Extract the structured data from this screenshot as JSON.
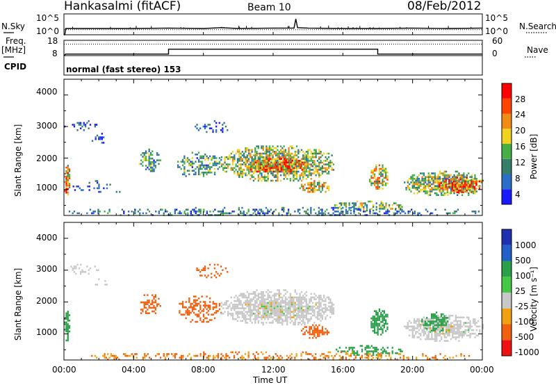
{
  "header": {
    "radar": "Hankasalmi (fitACF)",
    "beam": "Beam 10",
    "date": "08/Feb/2012",
    "cpid_text": "normal (fast stereo) 153"
  },
  "left_labels": {
    "nsky": "N.Sky",
    "freq": "Freq.",
    "freq_unit": "[MHz]",
    "cpid": "CPID"
  },
  "right_labels": {
    "nsearch": "N.Search",
    "nave": "Nave"
  },
  "colors": {
    "power": [
      "#1a1aff",
      "#2a6ec8",
      "#357f6b",
      "#46b046",
      "#f0d31e",
      "#f08c14",
      "#ff4400",
      "#ff0000"
    ],
    "velocity": [
      "#ee1111",
      "#f06010",
      "#f0a010",
      "#c8c8c8",
      "#46c846",
      "#2aa04a",
      "#2060c8",
      "#2030b0"
    ]
  },
  "chart_data": [
    {
      "type": "line",
      "name": "noise",
      "left_ticks": [
        "10^5",
        "10^0"
      ],
      "right_ticks": [
        "10^5",
        "10^0"
      ],
      "ylim_log10": [
        0,
        5
      ],
      "series": [
        {
          "name": "N.Sky",
          "style": "solid",
          "x_hours": [
            0,
            0.05,
            0.1,
            2,
            4,
            6,
            8,
            9,
            10,
            12,
            13.2,
            13.3,
            13.4,
            14,
            16,
            18,
            20,
            22,
            24
          ],
          "log10_values": [
            0,
            0,
            1.5,
            1.5,
            1.5,
            1.6,
            1.5,
            1.7,
            1.5,
            1.6,
            1.6,
            3.8,
            1.7,
            1.6,
            1.5,
            1.5,
            1.6,
            1.5,
            1.6
          ]
        },
        {
          "name": "N.Search",
          "style": "dotted",
          "x_hours": [
            0,
            24
          ],
          "log10_values": [
            1.2,
            1.2
          ]
        }
      ]
    },
    {
      "type": "line",
      "name": "frequency",
      "left_ticks": [
        "18",
        "8"
      ],
      "right_ticks": [
        "60",
        "0"
      ],
      "ylim_freq": [
        8,
        18
      ],
      "ylim_nave": [
        0,
        60
      ],
      "series": [
        {
          "name": "Freq.",
          "style": "solid",
          "x_hours": [
            0,
            0.05,
            0.1,
            6.0,
            6.0,
            18.0,
            18.0,
            24
          ],
          "mhz": [
            8,
            8.5,
            9,
            9,
            12.2,
            12.2,
            9,
            9
          ]
        },
        {
          "name": "Nave",
          "style": "dotted",
          "x_hours": [
            0,
            24
          ],
          "values": [
            45,
            45
          ]
        }
      ]
    },
    {
      "type": "heatmap",
      "name": "power",
      "ylabel": "Slant Range [km]",
      "yticks": [
        "4000",
        "3000",
        "2000",
        "1000"
      ],
      "ylim": [
        180,
        4500
      ],
      "xlim": [
        0,
        24
      ],
      "colorbar_label": "Power [dB]",
      "colorbar_ticks": [
        "28",
        "24",
        "20",
        "16",
        "12",
        "8",
        "4"
      ],
      "scale": [
        0,
        32
      ],
      "regions": [
        {
          "x": [
            0.0,
            0.3
          ],
          "y": [
            800,
            1900
          ],
          "v": 20,
          "density": 0.85
        },
        {
          "x": [
            0.0,
            0.2
          ],
          "y": [
            880,
            1160
          ],
          "v": 30,
          "density": 0.95
        },
        {
          "x": [
            0.0,
            2.0
          ],
          "y": [
            2900,
            3200
          ],
          "v": 6,
          "density": 0.4
        },
        {
          "x": [
            1.5,
            2.5
          ],
          "y": [
            2500,
            2800
          ],
          "v": 5,
          "density": 0.3
        },
        {
          "x": [
            0.5,
            3.5
          ],
          "y": [
            900,
            1300
          ],
          "v": 6,
          "density": 0.2
        },
        {
          "x": [
            4.2,
            5.5
          ],
          "y": [
            1600,
            2300
          ],
          "v": 11,
          "density": 0.55
        },
        {
          "x": [
            6.5,
            9.0
          ],
          "y": [
            1400,
            2200
          ],
          "v": 11,
          "density": 0.5
        },
        {
          "x": [
            9.0,
            15.5
          ],
          "y": [
            1300,
            2400
          ],
          "v": 15,
          "density": 0.8
        },
        {
          "x": [
            10.5,
            14.0
          ],
          "y": [
            1550,
            2000
          ],
          "v": 24,
          "density": 0.75
        },
        {
          "x": [
            13.5,
            15.2
          ],
          "y": [
            900,
            1300
          ],
          "v": 18,
          "density": 0.7
        },
        {
          "x": [
            15.5,
            19.5
          ],
          "y": [
            350,
            650
          ],
          "v": 14,
          "density": 0.55
        },
        {
          "x": [
            17.5,
            18.6
          ],
          "y": [
            1000,
            1800
          ],
          "v": 18,
          "density": 0.7
        },
        {
          "x": [
            19.5,
            24.0
          ],
          "y": [
            800,
            1600
          ],
          "v": 14,
          "density": 0.75
        },
        {
          "x": [
            21.5,
            24.0
          ],
          "y": [
            900,
            1400
          ],
          "v": 24,
          "density": 0.8
        },
        {
          "x": [
            0.0,
            24.0
          ],
          "y": [
            180,
            450
          ],
          "v": 8,
          "density": 0.35
        },
        {
          "x": [
            7.5,
            9.5
          ],
          "y": [
            2800,
            3200
          ],
          "v": 6,
          "density": 0.3
        }
      ]
    },
    {
      "type": "heatmap",
      "name": "velocity",
      "ylabel": "Slant Range [km]",
      "yticks": [
        "4000",
        "3000",
        "2000",
        "1000"
      ],
      "ylim": [
        180,
        4500
      ],
      "xlim": [
        0,
        24
      ],
      "colorbar_label": "Velocity [m s⁻¹]",
      "colorbar_unit": "m s",
      "colorbar_exponent": "-1",
      "colorbar_ticks": [
        "1000",
        "500",
        "100",
        "25",
        "-25",
        "-100",
        "-500",
        "-1000"
      ],
      "xticks": [
        "00:00",
        "04:00",
        "08:00",
        "12:00",
        "16:00",
        "20:00",
        "00:00"
      ],
      "xlabel": "Time UT",
      "regions": [
        {
          "x": [
            0.0,
            0.3
          ],
          "y": [
            800,
            1900
          ],
          "v": 300,
          "density": 0.85
        },
        {
          "x": [
            0.0,
            2.0
          ],
          "y": [
            2900,
            3200
          ],
          "v": 0,
          "density": 0.4
        },
        {
          "x": [
            1.5,
            2.5
          ],
          "y": [
            2500,
            2800
          ],
          "v": 0,
          "density": 0.3
        },
        {
          "x": [
            4.2,
            5.5
          ],
          "y": [
            1600,
            2300
          ],
          "v": -200,
          "density": 0.55
        },
        {
          "x": [
            6.5,
            9.0
          ],
          "y": [
            1400,
            2200
          ],
          "v": -300,
          "density": 0.5
        },
        {
          "x": [
            9.0,
            15.5
          ],
          "y": [
            1300,
            2400
          ],
          "v": 0,
          "density": 0.8
        },
        {
          "x": [
            13.5,
            15.2
          ],
          "y": [
            900,
            1300
          ],
          "v": -300,
          "density": 0.7
        },
        {
          "x": [
            15.5,
            19.5
          ],
          "y": [
            350,
            650
          ],
          "v": 150,
          "density": 0.55
        },
        {
          "x": [
            17.5,
            18.6
          ],
          "y": [
            1000,
            1800
          ],
          "v": 300,
          "density": 0.7
        },
        {
          "x": [
            19.5,
            24.0
          ],
          "y": [
            800,
            1600
          ],
          "v": 0,
          "density": 0.75
        },
        {
          "x": [
            20.5,
            22.0
          ],
          "y": [
            1100,
            1700
          ],
          "v": 300,
          "density": 0.7
        },
        {
          "x": [
            0.0,
            24.0
          ],
          "y": [
            180,
            450
          ],
          "v": -100,
          "density": 0.35
        },
        {
          "x": [
            7.5,
            9.5
          ],
          "y": [
            2800,
            3200
          ],
          "v": -200,
          "density": 0.3
        }
      ]
    }
  ]
}
